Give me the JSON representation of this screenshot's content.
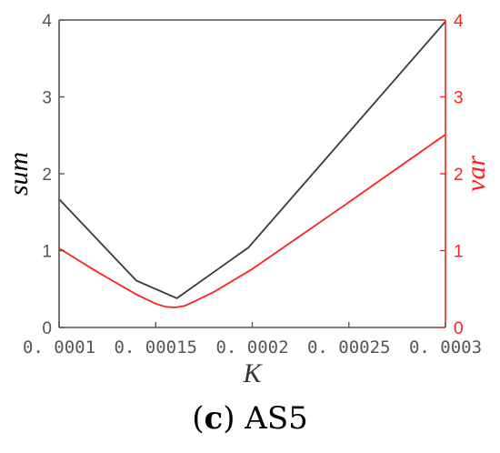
{
  "chart_data": {
    "type": "line",
    "xlabel": "K",
    "ylabel_left": "sum",
    "ylabel_right": "var",
    "x_ticks": [
      "0. 0001",
      "0. 00015",
      "0. 0002",
      "0. 00025",
      "0. 0003"
    ],
    "x_tick_values": [
      0.0001,
      0.00015,
      0.0002,
      0.00025,
      0.0003
    ],
    "xlim": [
      0.0001,
      0.0003
    ],
    "ylim_left": [
      0,
      4
    ],
    "ylim_right": [
      0,
      4
    ],
    "y_ticks_left": [
      "0",
      "1",
      "2",
      "3",
      "4"
    ],
    "y_ticks_right": [
      "0",
      "1",
      "2",
      "3",
      "4"
    ],
    "grid": false,
    "colors": {
      "sum": "#3a3a3a",
      "var": "#ff2020",
      "right_axis": "#ff2020",
      "left_axis": "#555555"
    },
    "series": [
      {
        "axis": "left",
        "color": "#3a3a3a",
        "x": [
          0.0001,
          0.00014,
          0.000161,
          0.000198,
          0.0003
        ],
        "y": [
          1.67,
          0.61,
          0.38,
          1.04,
          3.98
        ]
      },
      {
        "axis": "right",
        "color": "#ff2020",
        "x": [
          0.0001,
          0.00012,
          0.00014,
          0.00015,
          0.000155,
          0.00016,
          0.000165,
          0.00017,
          0.00018,
          0.0002,
          0.00025,
          0.0003
        ],
        "y": [
          1.03,
          0.72,
          0.43,
          0.31,
          0.27,
          0.26,
          0.28,
          0.34,
          0.46,
          0.76,
          1.63,
          2.51
        ]
      }
    ]
  },
  "caption": {
    "label": "c",
    "text": "AS5"
  }
}
